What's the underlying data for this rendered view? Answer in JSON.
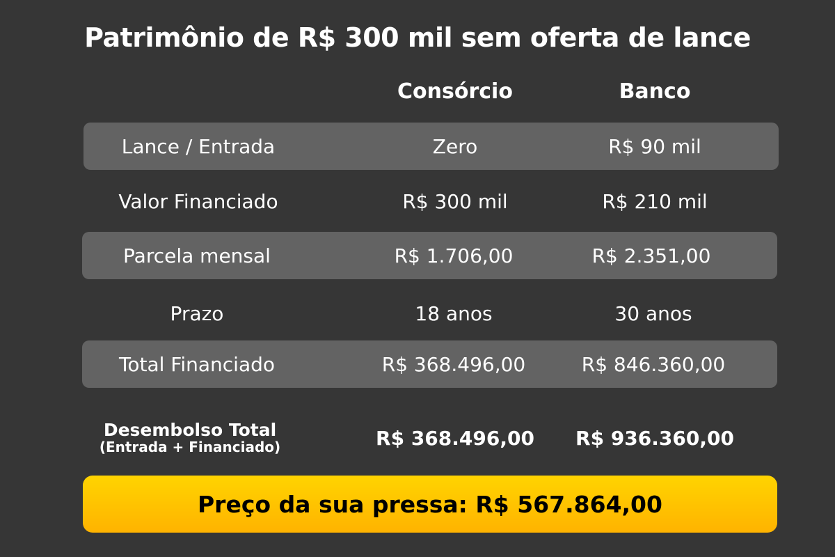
{
  "title": "Patrimônio de R$ 300 mil sem oferta de lance",
  "columns": [
    "Consórcio",
    "Banco"
  ],
  "rows": [
    {
      "label": "Lance / Entrada",
      "consorcio": "Zero",
      "banco": "R$ 90 mil",
      "shaded": true
    },
    {
      "label": "Valor Financiado",
      "consorcio": "R$ 300 mil",
      "banco": "R$ 210 mil",
      "shaded": false
    },
    {
      "label": "Parcela mensal",
      "consorcio": "R$ 1.706,00",
      "banco": "R$ 2.351,00",
      "shaded": true
    },
    {
      "label": "Prazo",
      "consorcio": "18 anos",
      "banco": "30 anos",
      "shaded": false
    },
    {
      "label": "Total Financiado",
      "consorcio": "R$ 368.496,00",
      "banco": "R$ 846.360,00",
      "shaded": true
    }
  ],
  "total": {
    "label": "Desembolso Total",
    "sublabel": "(Entrada + Financiado)",
    "consorcio": "R$ 368.496,00",
    "banco": "R$ 936.360,00"
  },
  "banner": "Preço da sua pressa: R$ 567.864,00",
  "colors": {
    "background": "#363636",
    "row_shade": "#636363",
    "banner": "#ffc400"
  }
}
